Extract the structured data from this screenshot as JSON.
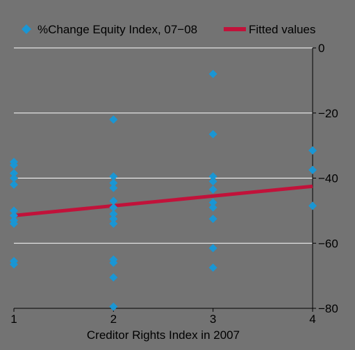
{
  "chart_data": {
    "type": "scatter",
    "xlabel": "Creditor Rights Index in 2007",
    "ylabel": "",
    "xlim": [
      1,
      4
    ],
    "ylim": [
      -80,
      0
    ],
    "xticks": [
      1,
      2,
      3,
      4
    ],
    "xtick_labels": [
      "1",
      "2",
      "3",
      "4"
    ],
    "yticks": [
      0,
      -20,
      -40,
      -60,
      -80
    ],
    "ytick_labels": [
      "0",
      "−20",
      "−40",
      "−60",
      "−80"
    ],
    "y_axis_side": "right",
    "grid": true,
    "legend_position": "top",
    "background_color": "#737373",
    "grid_color": "#ffffff",
    "series": [
      {
        "name": "%Change Equity Index, 07−08",
        "kind": "scatter",
        "marker": "diamond",
        "color": "#1a96d4",
        "points": [
          {
            "x": 1,
            "y": -35
          },
          {
            "x": 1,
            "y": -36
          },
          {
            "x": 1,
            "y": -38.5
          },
          {
            "x": 1,
            "y": -40
          },
          {
            "x": 1,
            "y": -42
          },
          {
            "x": 1,
            "y": -50
          },
          {
            "x": 1,
            "y": -51.5
          },
          {
            "x": 1,
            "y": -53
          },
          {
            "x": 1,
            "y": -54
          },
          {
            "x": 1,
            "y": -65.5
          },
          {
            "x": 1,
            "y": -66.5
          },
          {
            "x": 2,
            "y": -22
          },
          {
            "x": 2,
            "y": -39.5
          },
          {
            "x": 2,
            "y": -41.5
          },
          {
            "x": 2,
            "y": -43
          },
          {
            "x": 2,
            "y": -47
          },
          {
            "x": 2,
            "y": -49
          },
          {
            "x": 2,
            "y": -51
          },
          {
            "x": 2,
            "y": -52.5
          },
          {
            "x": 2,
            "y": -54
          },
          {
            "x": 2,
            "y": -65
          },
          {
            "x": 2,
            "y": -66
          },
          {
            "x": 2,
            "y": -70.5
          },
          {
            "x": 2,
            "y": -79.5
          },
          {
            "x": 3,
            "y": -8
          },
          {
            "x": 3,
            "y": -26.5
          },
          {
            "x": 3,
            "y": -39.5
          },
          {
            "x": 3,
            "y": -41
          },
          {
            "x": 3,
            "y": -43.5
          },
          {
            "x": 3,
            "y": -47.5
          },
          {
            "x": 3,
            "y": -49
          },
          {
            "x": 3,
            "y": -52.5
          },
          {
            "x": 3,
            "y": -61.5
          },
          {
            "x": 3,
            "y": -67.5
          },
          {
            "x": 4,
            "y": -31.5
          },
          {
            "x": 4,
            "y": -37.5
          },
          {
            "x": 4,
            "y": -48.5
          }
        ]
      },
      {
        "name": "Fitted values",
        "kind": "line",
        "color": "#c1123a",
        "points": [
          {
            "x": 1,
            "y": -51.5
          },
          {
            "x": 4,
            "y": -42.5
          }
        ]
      }
    ]
  }
}
